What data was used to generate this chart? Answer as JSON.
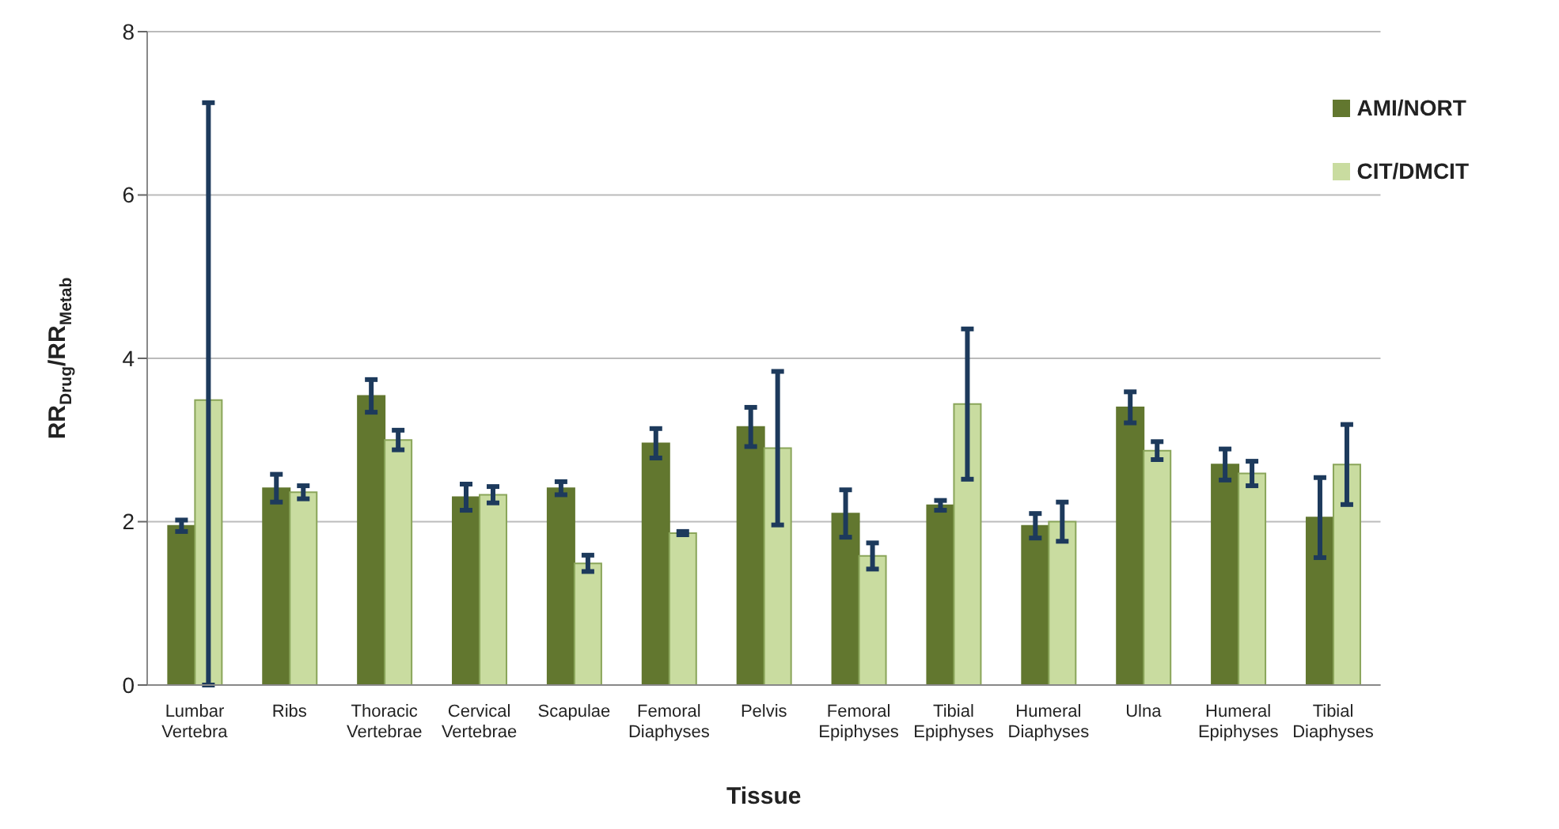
{
  "chart_data": {
    "type": "bar",
    "xlabel": "Tissue",
    "ylabel": "RR$_{Drug}$/RR$_{Metab}$",
    "categories": [
      "Lumbar Vertebra",
      "Ribs",
      "Thoracic Vertebrae",
      "Cervical Vertebrae",
      "Scapulae",
      "Femoral Diaphyses",
      "Pelvis",
      "Femoral Epiphyses",
      "Tibial Epiphyses",
      "Humeral Diaphyses",
      "Ulna",
      "Humeral Epiphyses",
      "Tibial Diaphyses"
    ],
    "series": [
      {
        "name": "AMI/NORT",
        "color": "#62772f",
        "values": [
          1.95,
          2.41,
          3.54,
          2.3,
          2.41,
          2.96,
          3.16,
          2.1,
          2.2,
          1.95,
          3.4,
          2.7,
          2.05
        ],
        "errors": [
          0.07,
          0.17,
          0.2,
          0.16,
          0.08,
          0.18,
          0.24,
          0.29,
          0.06,
          0.15,
          0.19,
          0.19,
          0.49
        ]
      },
      {
        "name": "CIT/DMCIT",
        "color": "#c9dca0",
        "values": [
          3.49,
          2.36,
          3.0,
          2.33,
          1.49,
          1.86,
          2.9,
          1.58,
          3.44,
          2.0,
          2.87,
          2.59,
          2.7
        ],
        "errors": [
          [
            0,
            7.13
          ],
          0.08,
          0.12,
          0.1,
          0.1,
          0.02,
          0.94,
          0.16,
          0.92,
          0.24,
          0.11,
          0.15,
          0.49
        ]
      }
    ],
    "ylim": [
      0,
      8
    ],
    "yticks": [
      0,
      2,
      4,
      6,
      8
    ],
    "grid": "y",
    "legend": "top right"
  }
}
